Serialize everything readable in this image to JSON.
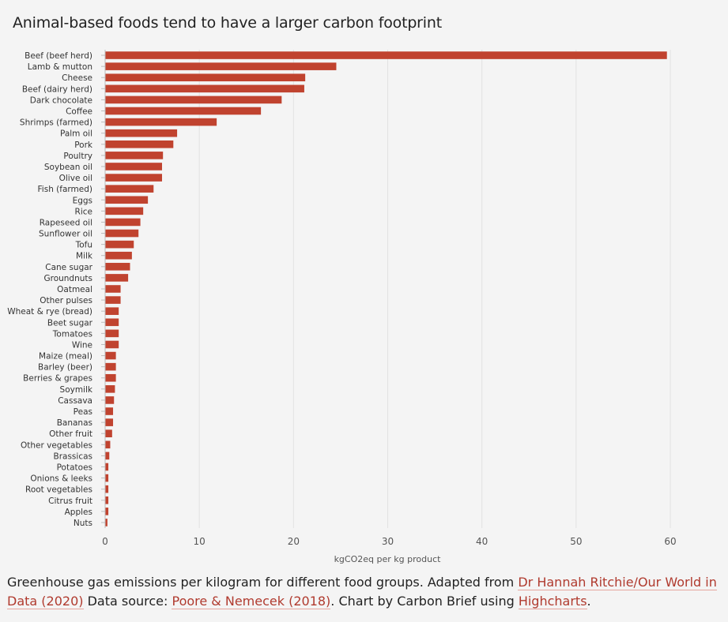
{
  "colors": {
    "bar": "#c0432f",
    "grid": "#e2e2e2",
    "axis": "#bcbcbc",
    "link": "#b03a2e"
  },
  "chart_data": {
    "type": "bar",
    "orientation": "horizontal",
    "title": "Animal-based foods tend to have a larger carbon footprint",
    "xlabel": "kgCO2eq per kg product",
    "ylabel": "",
    "xlim": [
      0,
      60
    ],
    "xticks": [
      0,
      10,
      20,
      30,
      40,
      50,
      60
    ],
    "grid": true,
    "legend": "none",
    "categories": [
      "Beef (beef herd)",
      "Lamb & mutton",
      "Cheese",
      "Beef (dairy herd)",
      "Dark chocolate",
      "Coffee",
      "Shrimps (farmed)",
      "Palm oil",
      "Pork",
      "Poultry",
      "Soybean oil",
      "Olive oil",
      "Fish (farmed)",
      "Eggs",
      "Rice",
      "Rapeseed oil",
      "Sunflower oil",
      "Tofu",
      "Milk",
      "Cane sugar",
      "Groundnuts",
      "Oatmeal",
      "Other pulses",
      "Wheat & rye (bread)",
      "Beet sugar",
      "Tomatoes",
      "Wine",
      "Maize (meal)",
      "Barley (beer)",
      "Berries & grapes",
      "Soymilk",
      "Cassava",
      "Peas",
      "Bananas",
      "Other fruit",
      "Other vegetables",
      "Brassicas",
      "Potatoes",
      "Onions & leeks",
      "Root vegetables",
      "Citrus fruit",
      "Apples",
      "Nuts"
    ],
    "values": [
      59.6,
      24.5,
      21.2,
      21.1,
      18.7,
      16.5,
      11.8,
      7.6,
      7.2,
      6.1,
      6.0,
      6.0,
      5.1,
      4.5,
      4.0,
      3.7,
      3.5,
      3.0,
      2.8,
      2.6,
      2.4,
      1.6,
      1.6,
      1.4,
      1.4,
      1.4,
      1.4,
      1.1,
      1.1,
      1.1,
      1.0,
      0.9,
      0.8,
      0.8,
      0.7,
      0.5,
      0.4,
      0.3,
      0.3,
      0.3,
      0.3,
      0.3,
      0.2
    ]
  },
  "caption": {
    "part1": "Greenhouse gas emissions per kilogram for different food groups. Adapted from ",
    "link1": "Dr Hannah Ritchie/Our World in Data (2020)",
    "part2": " Data source: ",
    "link2": "Poore & Nemecek (2018)",
    "part3": ". Chart by Carbon Brief using ",
    "link3": "Highcharts",
    "part4": "."
  }
}
